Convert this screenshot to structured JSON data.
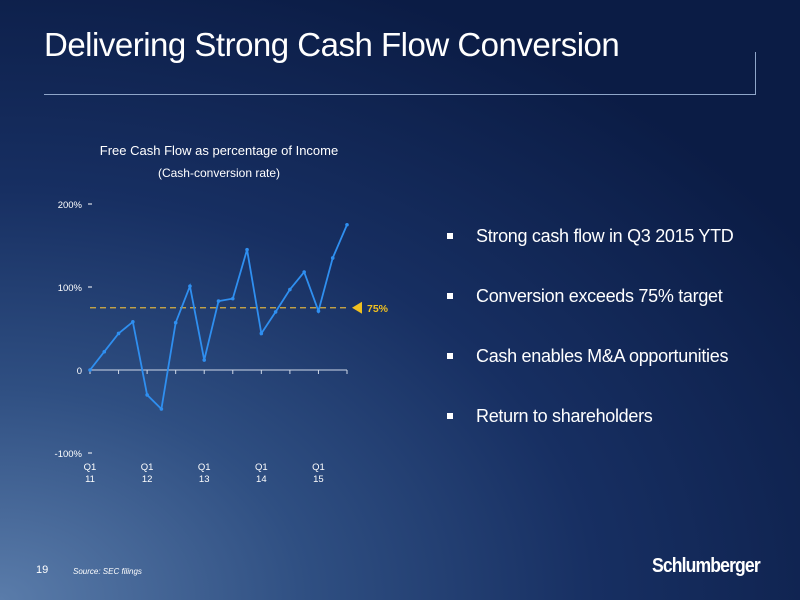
{
  "slide": {
    "title": "Delivering Strong Cash Flow Conversion",
    "page_number": "19",
    "source": "Source: SEC filings",
    "logo_text": "Schlumberger"
  },
  "bullets": [
    "Strong cash flow in Q3 2015 YTD",
    "Conversion exceeds 75% target",
    "Cash enables M&A opportunities",
    "Return to shareholders"
  ],
  "chart_data": {
    "type": "line",
    "title": "Free Cash Flow as percentage of Income",
    "subtitle": "(Cash-conversion rate)",
    "y_ticks": [
      "200%",
      "100%",
      "0",
      "-100%"
    ],
    "ylim": [
      -100,
      200
    ],
    "x_ticks": [
      {
        "quarter": "Q1",
        "year": "11",
        "index": 0
      },
      {
        "quarter": "Q1",
        "year": "12",
        "index": 4
      },
      {
        "quarter": "Q1",
        "year": "13",
        "index": 8
      },
      {
        "quarter": "Q1",
        "year": "14",
        "index": 12
      },
      {
        "quarter": "Q1",
        "year": "15",
        "index": 16
      }
    ],
    "series": [
      {
        "values": [
          0,
          22,
          44,
          58,
          -30,
          -47,
          57,
          101,
          12,
          83,
          86,
          145,
          44,
          70,
          97,
          118,
          71,
          135,
          175
        ],
        "color": "#2f8ff0"
      }
    ],
    "target": {
      "value": 75,
      "label": "75%",
      "color": "#d9b040"
    },
    "grid": false
  }
}
